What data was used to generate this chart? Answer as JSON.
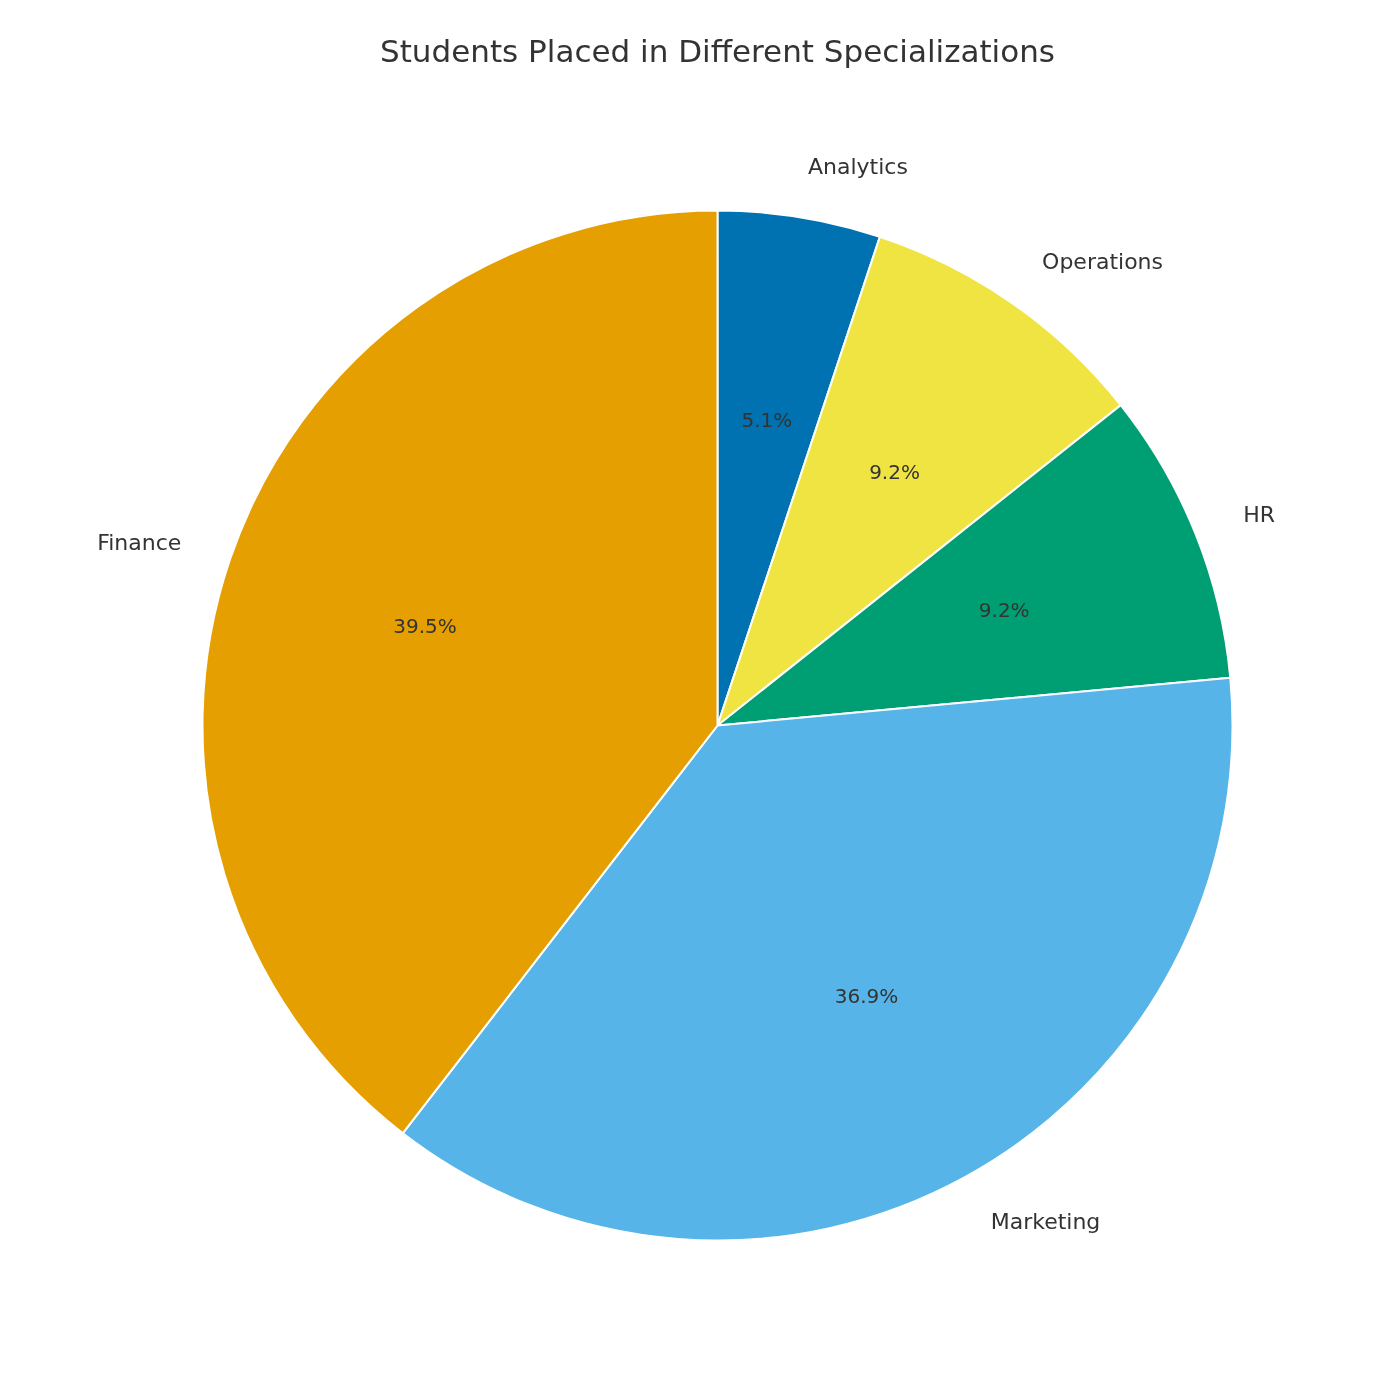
{
  "chart_data": {
    "type": "pie",
    "title": "Students Placed in Different Specializations",
    "categories": [
      "Analytics",
      "Operations",
      "HR",
      "Marketing",
      "Finance"
    ],
    "values": [
      5.1,
      9.2,
      9.2,
      36.9,
      39.5
    ],
    "colors": [
      "#0072b2",
      "#f0e442",
      "#009e73",
      "#56b4e9",
      "#e69f00"
    ],
    "value_labels": [
      "5.1%",
      "9.2%",
      "9.2%",
      "36.9%",
      "39.5%"
    ],
    "legend": false
  }
}
